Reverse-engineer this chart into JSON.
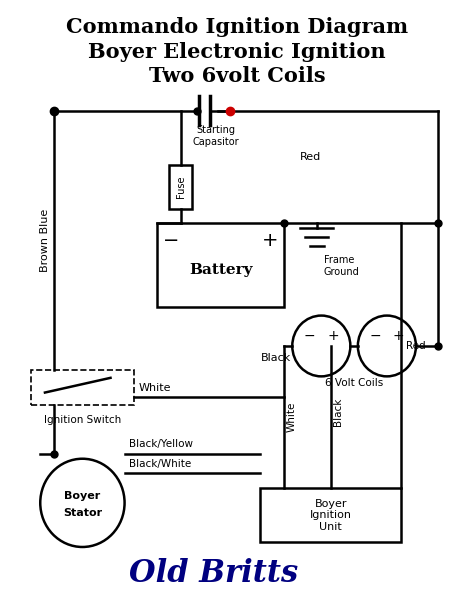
{
  "title_lines": [
    "Commando Ignition Diagram",
    "Boyer Electronic Ignition",
    "Two 6volt Coils"
  ],
  "title_fontsize": 15,
  "bg_color": "#ffffff",
  "line_color": "#000000",
  "red_color": "#cc0000",
  "blue_color": "#000080",
  "fig_width": 4.74,
  "fig_height": 5.96
}
